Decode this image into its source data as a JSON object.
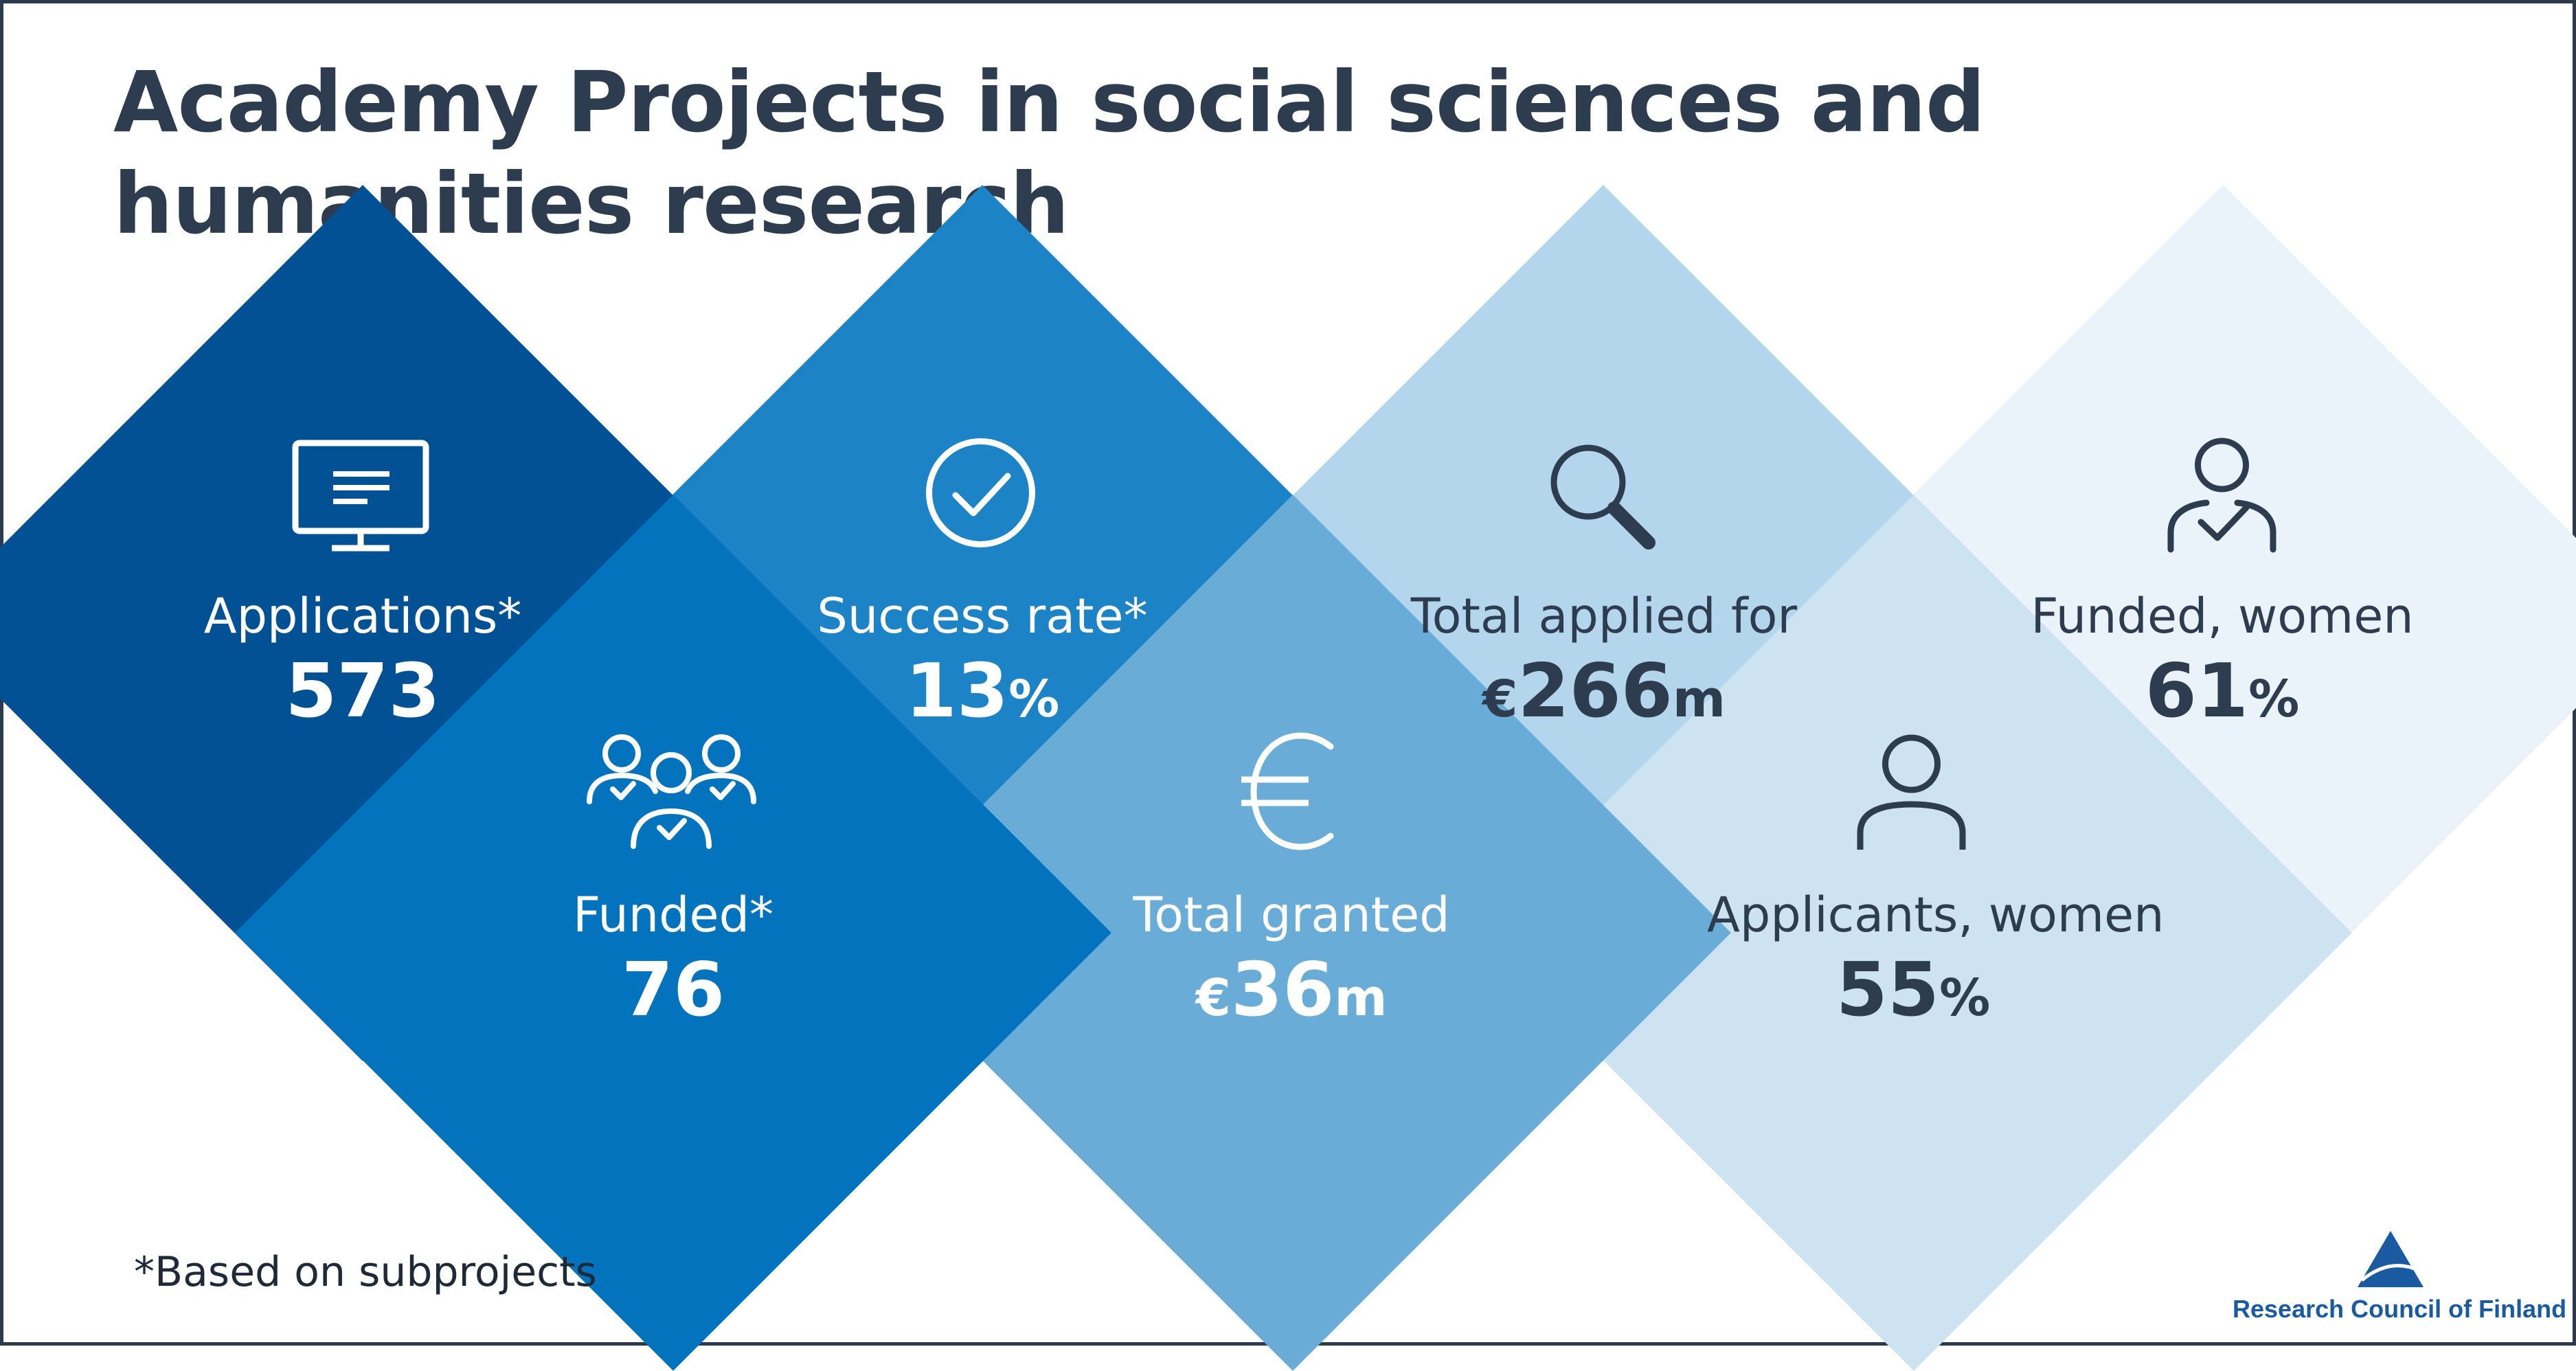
{
  "title": {
    "line1": "Academy Projects in social sciences and",
    "line2": "humanities research"
  },
  "colors": {
    "applications": "#035195",
    "funded": "#0373bd",
    "success": "#1c84c6",
    "granted": "#68acd7",
    "applied": "#b4d6ec",
    "applicants_women": "#cde3f1",
    "funded_women": "#eaf3fa",
    "dark_text": "#2e3c4f"
  },
  "stats": {
    "applications": {
      "label": "Applications*",
      "value": "573",
      "icon": "monitor-icon"
    },
    "funded": {
      "label": "Funded*",
      "value": "76",
      "icon": "group-check-icon"
    },
    "success_rate": {
      "label": "Success rate*",
      "value": "13",
      "unit": "%",
      "icon": "check-circle-icon"
    },
    "total_granted": {
      "label": "Total granted",
      "prefix": "€",
      "value": "36",
      "unit": "m",
      "icon": "euro-icon"
    },
    "total_applied": {
      "label": "Total applied for",
      "prefix": "€",
      "value": "266",
      "unit": "m",
      "icon": "magnifier-icon"
    },
    "applicants_women": {
      "label": "Applicants, women",
      "value": "55",
      "unit": "%",
      "icon": "person-icon"
    },
    "funded_women": {
      "label": "Funded, women",
      "value": "61",
      "unit": "%",
      "icon": "person-check-icon"
    }
  },
  "footnote": "*Based on subprojects",
  "brand": {
    "name": "Research Council of Finland",
    "icon": "triangle-logo-icon"
  }
}
